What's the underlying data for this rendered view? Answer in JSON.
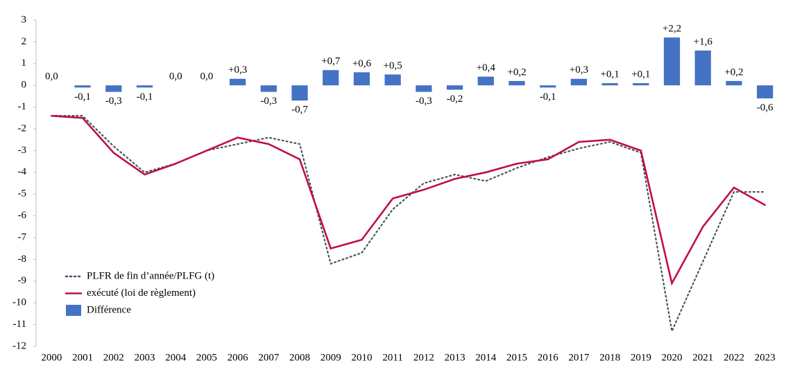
{
  "chart_data": {
    "type": "combo",
    "categories": [
      "2000",
      "2001",
      "2002",
      "2003",
      "2004",
      "2005",
      "2006",
      "2007",
      "2008",
      "2009",
      "2010",
      "2011",
      "2012",
      "2013",
      "2014",
      "2015",
      "2016",
      "2017",
      "2018",
      "2019",
      "2020",
      "2021",
      "2022",
      "2023"
    ],
    "ylim": [
      -12,
      3
    ],
    "yticks": [
      3,
      2,
      1,
      0,
      -1,
      -2,
      -3,
      -4,
      -5,
      -6,
      -7,
      -8,
      -9,
      -10,
      -11,
      -12
    ],
    "legend": "lower left",
    "series": [
      {
        "name": "PLFR de fin d’année/PLFG (t)",
        "type": "line",
        "style": "dotted",
        "color": "#44546a",
        "values": [
          -1.4,
          -1.4,
          -2.8,
          -4.0,
          -3.6,
          -3.0,
          -2.7,
          -2.4,
          -2.7,
          -8.2,
          -7.7,
          -5.7,
          -4.5,
          -4.1,
          -4.4,
          -3.8,
          -3.3,
          -2.9,
          -2.6,
          -3.1,
          -11.3,
          -8.1,
          -4.9,
          -4.9
        ]
      },
      {
        "name": "exécuté (loi de règlement)",
        "type": "line",
        "style": "solid",
        "color": "#c00d45",
        "values": [
          -1.4,
          -1.5,
          -3.1,
          -4.1,
          -3.6,
          -3.0,
          -2.4,
          -2.7,
          -3.4,
          -7.5,
          -7.1,
          -5.2,
          -4.8,
          -4.3,
          -4.0,
          -3.6,
          -3.4,
          -2.6,
          -2.5,
          -3.0,
          -9.1,
          -6.5,
          -4.7,
          -5.5
        ]
      },
      {
        "name": "Différence",
        "type": "bar",
        "color": "#4472c4",
        "values": [
          0.0,
          -0.1,
          -0.3,
          -0.1,
          0.0,
          0.0,
          0.3,
          -0.3,
          -0.7,
          0.7,
          0.6,
          0.5,
          -0.3,
          -0.2,
          0.4,
          0.2,
          -0.1,
          0.3,
          0.1,
          0.1,
          2.2,
          1.6,
          0.2,
          -0.6
        ],
        "value_labels": [
          "0,0",
          "-0,1",
          "-0,3",
          "-0,1",
          "0,0",
          "0,0",
          "+0,3",
          "-0,3",
          "-0,7",
          "+0,7",
          "+0,6",
          "+0,5",
          "-0,3",
          "-0,2",
          "+0,4",
          "+0,2",
          "-0,1",
          "+0,3",
          "+0,1",
          "+0,1",
          "+2,2",
          "+1,6",
          "+0,2",
          "-0,6"
        ]
      }
    ]
  }
}
